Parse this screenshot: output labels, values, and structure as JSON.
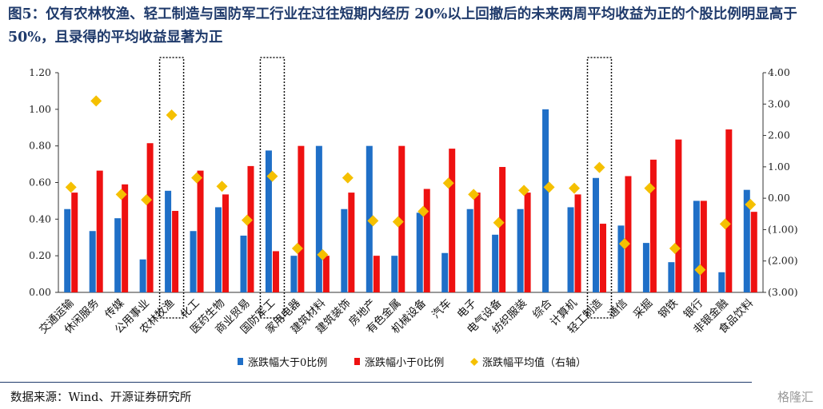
{
  "title": "图5：仅有农林牧渔、轻工制造与国防军工行业在过往短期内经历 20%以上回撤后的未来两周平均收益为正的个股比例明显高于 50%，且录得的平均收益显著为正",
  "source": "数据来源：Wind、开源证券研究所",
  "watermark": "格隆汇",
  "colors": {
    "series_up": "#1f6fc7",
    "series_down": "#ee1111",
    "series_mean": "#f5c000",
    "highlight_box": "#111111",
    "title": "#1f3a6b"
  },
  "chart_data": {
    "type": "bar",
    "categories": [
      "交通运输",
      "休闲服务",
      "传媒",
      "公用事业",
      "农林牧渔",
      "化工",
      "医药生物",
      "商业贸易",
      "国防军工",
      "家用电器",
      "建筑材料",
      "建筑装饰",
      "房地产",
      "有色金属",
      "机械设备",
      "汽车",
      "电子",
      "电气设备",
      "纺织服装",
      "综合",
      "计算机",
      "轻工制造",
      "通信",
      "采掘",
      "钢铁",
      "银行",
      "非银金融",
      "食品饮料"
    ],
    "highlighted": [
      "农林牧渔",
      "国防军工",
      "轻工制造"
    ],
    "series": [
      {
        "name": "涨跌幅大于0比例",
        "axis": "left",
        "kind": "bar",
        "color": "#1f6fc7",
        "values": [
          0.455,
          0.335,
          0.405,
          0.18,
          0.555,
          0.335,
          0.465,
          0.31,
          0.775,
          0.2,
          0.8,
          0.455,
          0.8,
          0.2,
          0.435,
          0.215,
          0.455,
          0.315,
          0.455,
          1.0,
          0.465,
          0.625,
          0.365,
          0.27,
          0.165,
          0.5,
          0.11,
          0.56
        ]
      },
      {
        "name": "涨跌幅小于0比例",
        "axis": "left",
        "kind": "bar",
        "color": "#ee1111",
        "values": [
          0.545,
          0.665,
          0.59,
          0.815,
          0.445,
          0.665,
          0.535,
          0.69,
          0.225,
          0.8,
          0.2,
          0.545,
          0.2,
          0.8,
          0.565,
          0.785,
          0.545,
          0.685,
          0.545,
          0.0,
          0.535,
          0.375,
          0.635,
          0.725,
          0.835,
          0.5,
          0.89,
          0.44
        ]
      },
      {
        "name": "涨跌幅平均值（右轴）",
        "axis": "right",
        "kind": "scatter",
        "marker": "diamond",
        "color": "#f5c000",
        "values": [
          0.35,
          3.1,
          0.12,
          -0.05,
          2.65,
          0.65,
          0.38,
          -0.7,
          0.7,
          -1.6,
          -1.8,
          0.65,
          -0.72,
          -0.75,
          -0.42,
          0.48,
          0.12,
          -0.78,
          0.25,
          0.35,
          0.32,
          0.98,
          -1.45,
          0.32,
          -1.6,
          -2.28,
          -0.82,
          -0.2
        ]
      }
    ],
    "y_left": {
      "min": 0,
      "max": 1.2,
      "ticks": [
        "0.00",
        "0.20",
        "0.40",
        "0.60",
        "0.80",
        "1.00",
        "1.20"
      ]
    },
    "y_right": {
      "min": -3,
      "max": 4,
      "ticks": [
        "(3.00)",
        "(2.00)",
        "(1.00)",
        "0.00",
        "1.00",
        "2.00",
        "3.00",
        "4.00"
      ]
    },
    "grid": false,
    "legend_position": "bottom"
  }
}
